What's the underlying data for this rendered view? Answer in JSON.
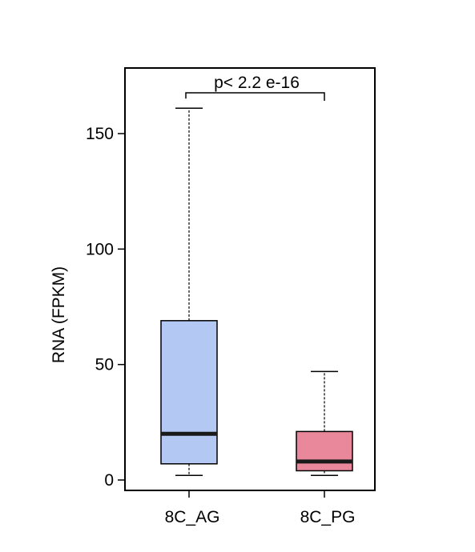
{
  "chart_data": {
    "type": "boxplot",
    "ylabel": "RNA (FPKM)",
    "ylim": [
      -5,
      168
    ],
    "yticks": [
      0,
      50,
      100,
      150
    ],
    "grid": false,
    "categories": [
      "8C_AG",
      "8C_PG"
    ],
    "boxes": [
      {
        "category": "8C_AG",
        "whisker_low": 2,
        "q1": 7,
        "median": 20,
        "q3": 69,
        "whisker_high": 161,
        "color": "#b3c8f2"
      },
      {
        "category": "8C_PG",
        "whisker_low": 2,
        "q1": 4,
        "median": 8,
        "q3": 21,
        "whisker_high": 47,
        "color": "#e8889a"
      }
    ],
    "annotation": {
      "text": "p< 2.2 e-16",
      "between": [
        "8C_AG",
        "8C_PG"
      ]
    }
  }
}
